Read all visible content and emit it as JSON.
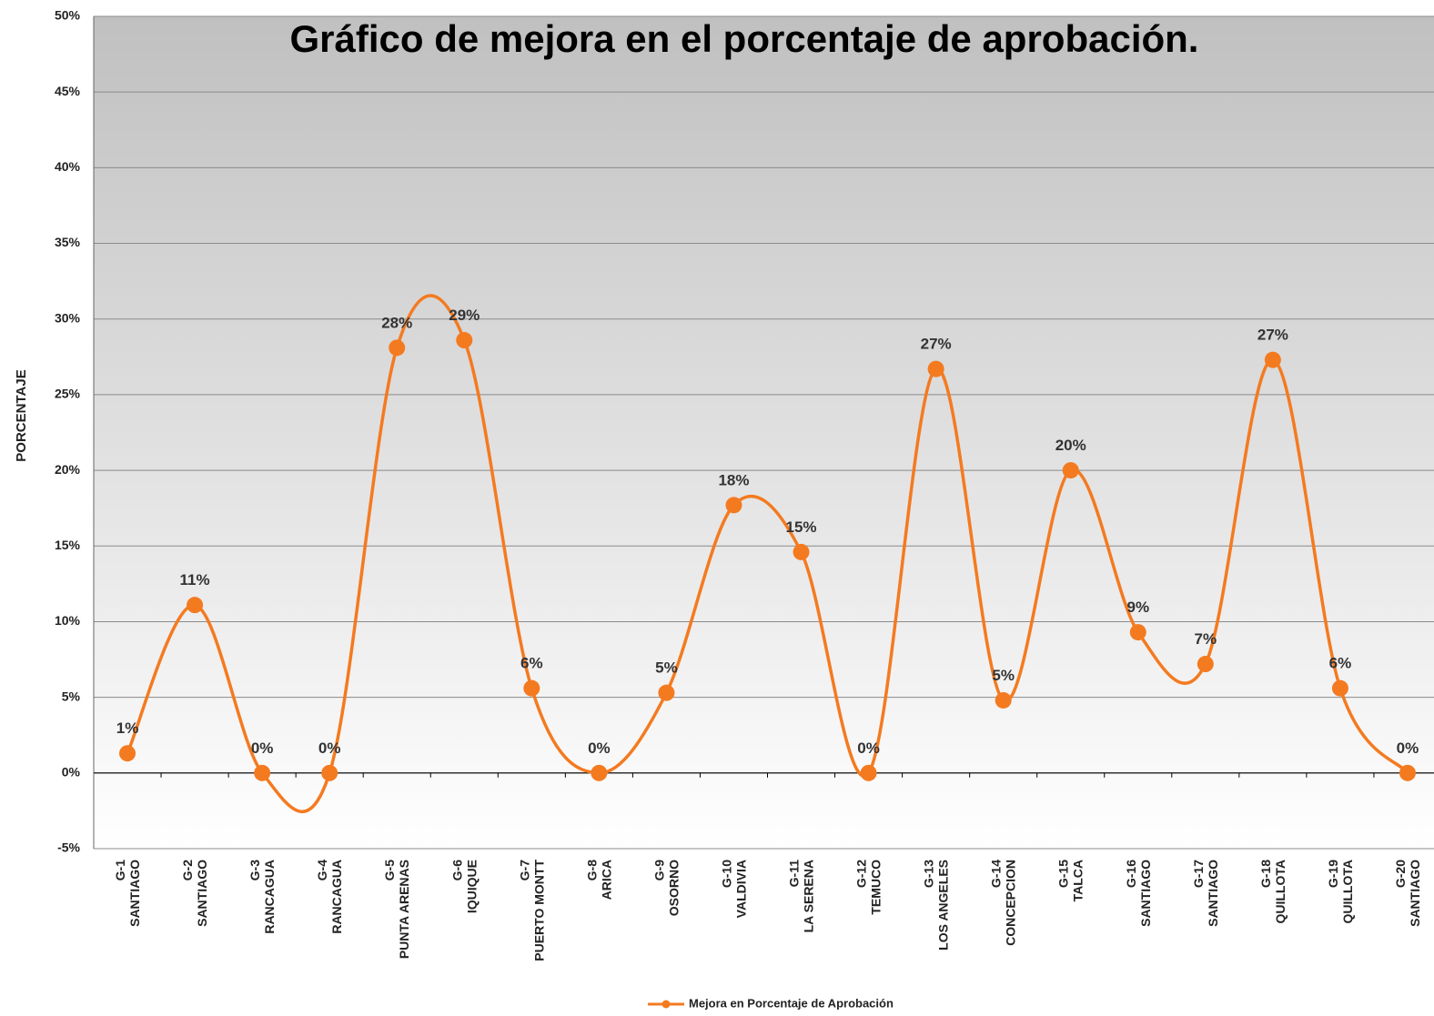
{
  "chart_data": {
    "type": "line",
    "title": "Gráfico de mejora en el porcentaje de aprobación.",
    "y_label": "PORCENTAJE",
    "categories": [
      [
        "G-1",
        "SANTIAGO"
      ],
      [
        "G-2",
        "SANTIAGO"
      ],
      [
        "G-3",
        "RANCAGUA"
      ],
      [
        "G-4",
        "RANCAGUA"
      ],
      [
        "G-5",
        "PUNTA ARENAS"
      ],
      [
        "G-6",
        "IQUIQUE"
      ],
      [
        "G-7",
        "PUERTO MONTT"
      ],
      [
        "G-8",
        "ARICA"
      ],
      [
        "G-9",
        "OSORNO"
      ],
      [
        "G-10",
        "VALDIVIA"
      ],
      [
        "G-11",
        "LA SERENA"
      ],
      [
        "G-12",
        "TEMUCO"
      ],
      [
        "G-13",
        "LOS ANGELES"
      ],
      [
        "G-14",
        "CONCEPCION"
      ],
      [
        "G-15",
        "TALCA"
      ],
      [
        "G-16",
        "SANTIAGO"
      ],
      [
        "G-17",
        "SANTIAGO"
      ],
      [
        "G-18",
        "QUILLOTA"
      ],
      [
        "G-19",
        "QUILLOTA"
      ],
      [
        "G-20",
        "SANTIAGO"
      ]
    ],
    "series": [
      {
        "name": "Mejora en Porcentaje de Aprobación",
        "color": "#f47a20",
        "values": [
          1.3,
          11.1,
          0,
          0,
          28.1,
          28.6,
          5.6,
          0,
          5.3,
          17.7,
          14.6,
          0,
          26.7,
          4.8,
          20.0,
          9.3,
          7.2,
          27.3,
          5.6,
          0
        ],
        "value_labels": [
          "1%",
          "11%",
          "0%",
          "0%",
          "28%",
          "29%",
          "6%",
          "0%",
          "5%",
          "18%",
          "15%",
          "0%",
          "27%",
          "5%",
          "20%",
          "9%",
          "7%",
          "27%",
          "6%",
          "0%"
        ]
      }
    ],
    "ylim": [
      -5,
      50
    ],
    "yticks": [
      {
        "value": -5,
        "label": "-5%"
      },
      {
        "value": 0,
        "label": "0%"
      },
      {
        "value": 5,
        "label": "5%"
      },
      {
        "value": 10,
        "label": "10%"
      },
      {
        "value": 15,
        "label": "15%"
      },
      {
        "value": 20,
        "label": "20%"
      },
      {
        "value": 25,
        "label": "25%"
      },
      {
        "value": 30,
        "label": "30%"
      },
      {
        "value": 35,
        "label": "35%"
      },
      {
        "value": 40,
        "label": "40%"
      },
      {
        "value": 45,
        "label": "45%"
      },
      {
        "value": 50,
        "label": "50%"
      }
    ],
    "grid": true,
    "smooth": true,
    "legend": "bottom"
  }
}
